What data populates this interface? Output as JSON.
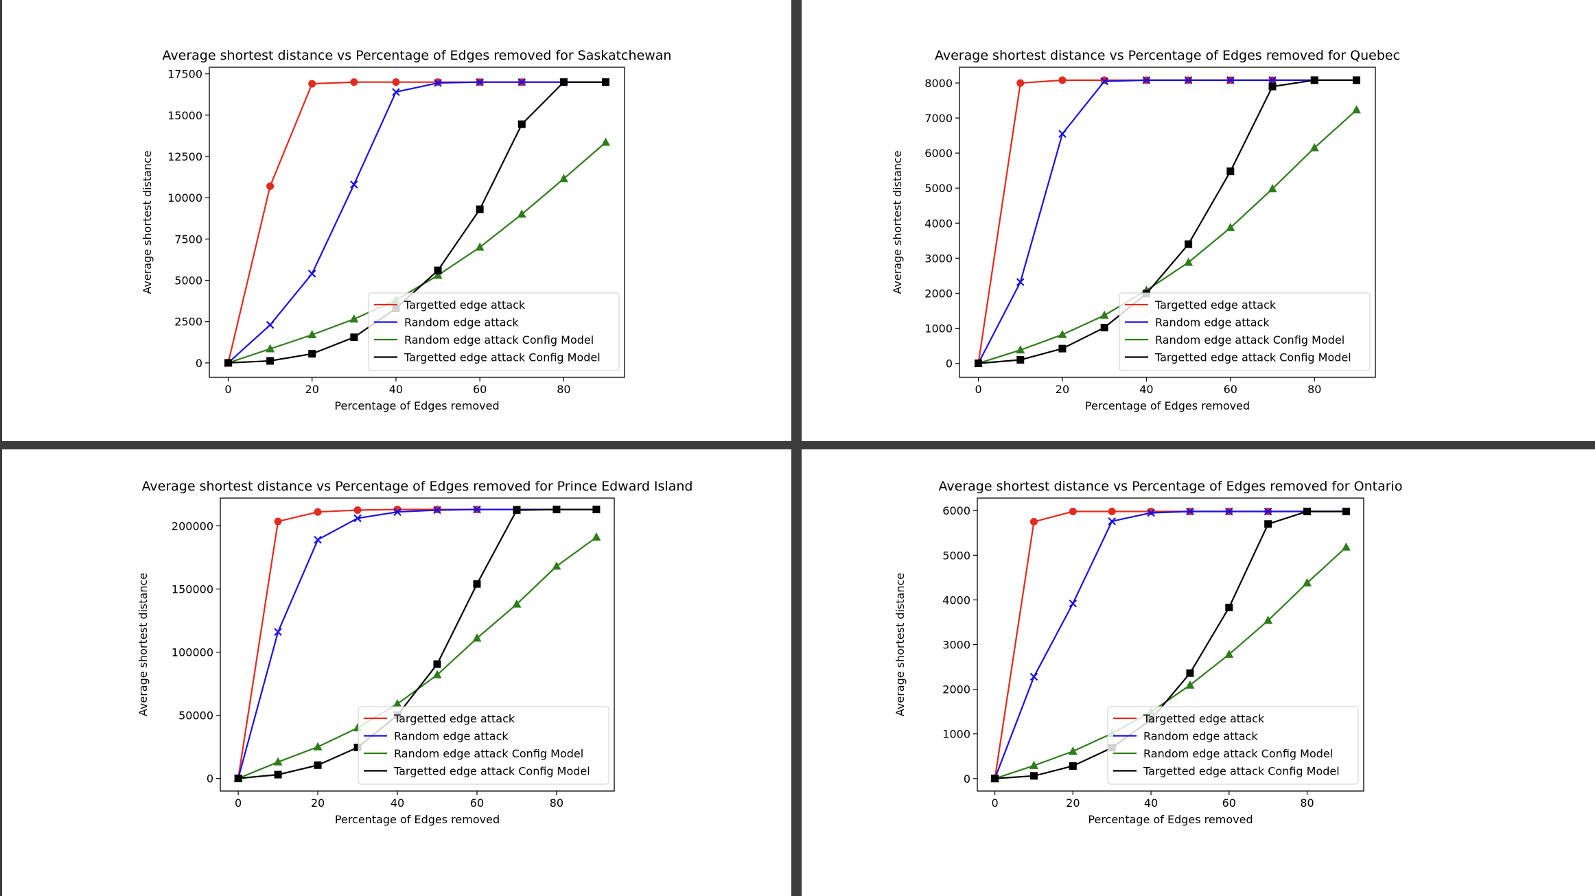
{
  "chart_data": [
    {
      "type": "line",
      "title": "Average shortest distance vs Percentage of Edges removed for Saskatchewan",
      "xlabel": "Percentage of Edges removed",
      "ylabel": "Average shortest distance",
      "xlim": [
        -4.5,
        94.5
      ],
      "ylim": [
        -875,
        17900
      ],
      "xticks": [
        0,
        20,
        40,
        60,
        80
      ],
      "xtick_labels": [
        "0",
        "20",
        "40",
        "60",
        "80"
      ],
      "yticks": [
        0,
        2500,
        5000,
        7500,
        10000,
        12500,
        15000,
        17500
      ],
      "ytick_labels": [
        "0",
        "2500",
        "5000",
        "7500",
        "10000",
        "12500",
        "15000",
        "17500"
      ],
      "grid": false,
      "legend_position": "lower-right",
      "x": [
        0,
        10,
        20,
        30,
        40,
        50,
        60,
        70,
        80,
        90
      ],
      "series": [
        {
          "name": "Targetted edge attack",
          "color": "#e32a1e",
          "marker": "circle",
          "values": [
            0,
            10700,
            16900,
            17000,
            17000,
            17000,
            17000,
            17000,
            17000,
            17000
          ]
        },
        {
          "name": "Random edge attack",
          "color": "#1a10e8",
          "marker": "x",
          "values": [
            0,
            2300,
            5400,
            10800,
            16400,
            16950,
            17000,
            17000,
            17000,
            17000
          ]
        },
        {
          "name": "Random edge attack Config Model",
          "color": "#2e7d1a",
          "marker": "triangle",
          "values": [
            0,
            850,
            1700,
            2650,
            3800,
            5300,
            7000,
            9000,
            11150,
            13350
          ]
        },
        {
          "name": "Targetted edge attack Config Model",
          "color": "#000000",
          "marker": "square",
          "values": [
            0,
            120,
            550,
            1550,
            3300,
            5600,
            9300,
            14450,
            17000,
            17000
          ]
        }
      ]
    },
    {
      "type": "line",
      "title": "Average shortest distance vs Percentage of Edges removed for Quebec",
      "xlabel": "Percentage of Edges removed",
      "ylabel": "Average shortest distance",
      "xlim": [
        -4.5,
        94.5
      ],
      "ylim": [
        -400,
        8450
      ],
      "xticks": [
        0,
        20,
        40,
        60,
        80
      ],
      "xtick_labels": [
        "0",
        "20",
        "40",
        "60",
        "80"
      ],
      "yticks": [
        0,
        1000,
        2000,
        3000,
        4000,
        5000,
        6000,
        7000,
        8000
      ],
      "ytick_labels": [
        "0",
        "1000",
        "2000",
        "3000",
        "4000",
        "5000",
        "6000",
        "7000",
        "8000"
      ],
      "grid": false,
      "legend_position": "lower-right",
      "x": [
        0,
        10,
        20,
        30,
        40,
        50,
        60,
        70,
        80,
        90
      ],
      "series": [
        {
          "name": "Targetted edge attack",
          "color": "#e32a1e",
          "marker": "circle",
          "values": [
            0,
            8000,
            8080,
            8080,
            8080,
            8080,
            8080,
            8080,
            8080,
            8080
          ]
        },
        {
          "name": "Random edge attack",
          "color": "#1a10e8",
          "marker": "x",
          "values": [
            0,
            2320,
            6550,
            8050,
            8080,
            8080,
            8080,
            8080,
            8080,
            8080
          ]
        },
        {
          "name": "Random edge attack Config Model",
          "color": "#2e7d1a",
          "marker": "triangle",
          "values": [
            0,
            380,
            820,
            1370,
            2080,
            2880,
            3870,
            4980,
            6150,
            7230
          ]
        },
        {
          "name": "Targetted edge attack Config Model",
          "color": "#000000",
          "marker": "square",
          "values": [
            0,
            100,
            420,
            1020,
            1990,
            3400,
            5480,
            7900,
            8080,
            8080
          ]
        }
      ]
    },
    {
      "type": "line",
      "title": "Average shortest distance vs Percentage of Edges removed for Prince Edward Island",
      "xlabel": "Percentage of Edges removed",
      "ylabel": "Average shortest distance",
      "xlim": [
        -4.5,
        94.5
      ],
      "ylim": [
        -10000,
        222000
      ],
      "xticks": [
        0,
        20,
        40,
        60,
        80
      ],
      "xtick_labels": [
        "0",
        "20",
        "40",
        "60",
        "80"
      ],
      "yticks": [
        0,
        50000,
        100000,
        150000,
        200000
      ],
      "ytick_labels": [
        "0",
        "50000",
        "100000",
        "150000",
        "200000"
      ],
      "grid": false,
      "legend_position": "lower-right",
      "x": [
        0,
        10,
        20,
        30,
        40,
        50,
        60,
        70,
        80,
        90
      ],
      "series": [
        {
          "name": "Targetted edge attack",
          "color": "#e32a1e",
          "marker": "circle",
          "values": [
            0,
            203500,
            211000,
            212500,
            213000,
            213000,
            213000,
            213000,
            213000,
            213000
          ]
        },
        {
          "name": "Random edge attack",
          "color": "#1a10e8",
          "marker": "x",
          "values": [
            0,
            116000,
            189000,
            206000,
            211000,
            212500,
            213000,
            213000,
            213000,
            213000
          ]
        },
        {
          "name": "Random edge attack Config Model",
          "color": "#2e7d1a",
          "marker": "triangle",
          "values": [
            0,
            13000,
            25000,
            40000,
            59000,
            82000,
            111000,
            138000,
            168000,
            191000
          ]
        },
        {
          "name": "Targetted edge attack Config Model",
          "color": "#000000",
          "marker": "square",
          "values": [
            0,
            3000,
            10500,
            24500,
            50000,
            90500,
            154000,
            212500,
            213000,
            213000
          ]
        }
      ]
    },
    {
      "type": "line",
      "title": "Average shortest distance vs Percentage of Edges removed for Ontario",
      "xlabel": "Percentage of Edges removed",
      "ylabel": "Average shortest distance",
      "xlim": [
        -4.5,
        94.5
      ],
      "ylim": [
        -280,
        6280
      ],
      "xticks": [
        0,
        20,
        40,
        60,
        80
      ],
      "xtick_labels": [
        "0",
        "20",
        "40",
        "60",
        "80"
      ],
      "yticks": [
        0,
        1000,
        2000,
        3000,
        4000,
        5000,
        6000
      ],
      "ytick_labels": [
        "0",
        "1000",
        "2000",
        "3000",
        "4000",
        "5000",
        "6000"
      ],
      "grid": false,
      "legend_position": "lower-right",
      "x": [
        0,
        10,
        20,
        30,
        40,
        50,
        60,
        70,
        80,
        90
      ],
      "series": [
        {
          "name": "Targetted edge attack",
          "color": "#e32a1e",
          "marker": "circle",
          "values": [
            0,
            5750,
            5980,
            5980,
            5980,
            5980,
            5980,
            5980,
            5980,
            5980
          ]
        },
        {
          "name": "Random edge attack",
          "color": "#1a10e8",
          "marker": "x",
          "values": [
            0,
            2280,
            3920,
            5760,
            5950,
            5980,
            5980,
            5980,
            5980,
            5980
          ]
        },
        {
          "name": "Random edge attack Config Model",
          "color": "#2e7d1a",
          "marker": "triangle",
          "values": [
            0,
            290,
            610,
            1010,
            1490,
            2090,
            2780,
            3540,
            4380,
            5180
          ]
        },
        {
          "name": "Targetted edge attack Config Model",
          "color": "#000000",
          "marker": "square",
          "values": [
            0,
            60,
            280,
            690,
            1320,
            2360,
            3830,
            5700,
            5980,
            5980
          ]
        }
      ]
    }
  ]
}
